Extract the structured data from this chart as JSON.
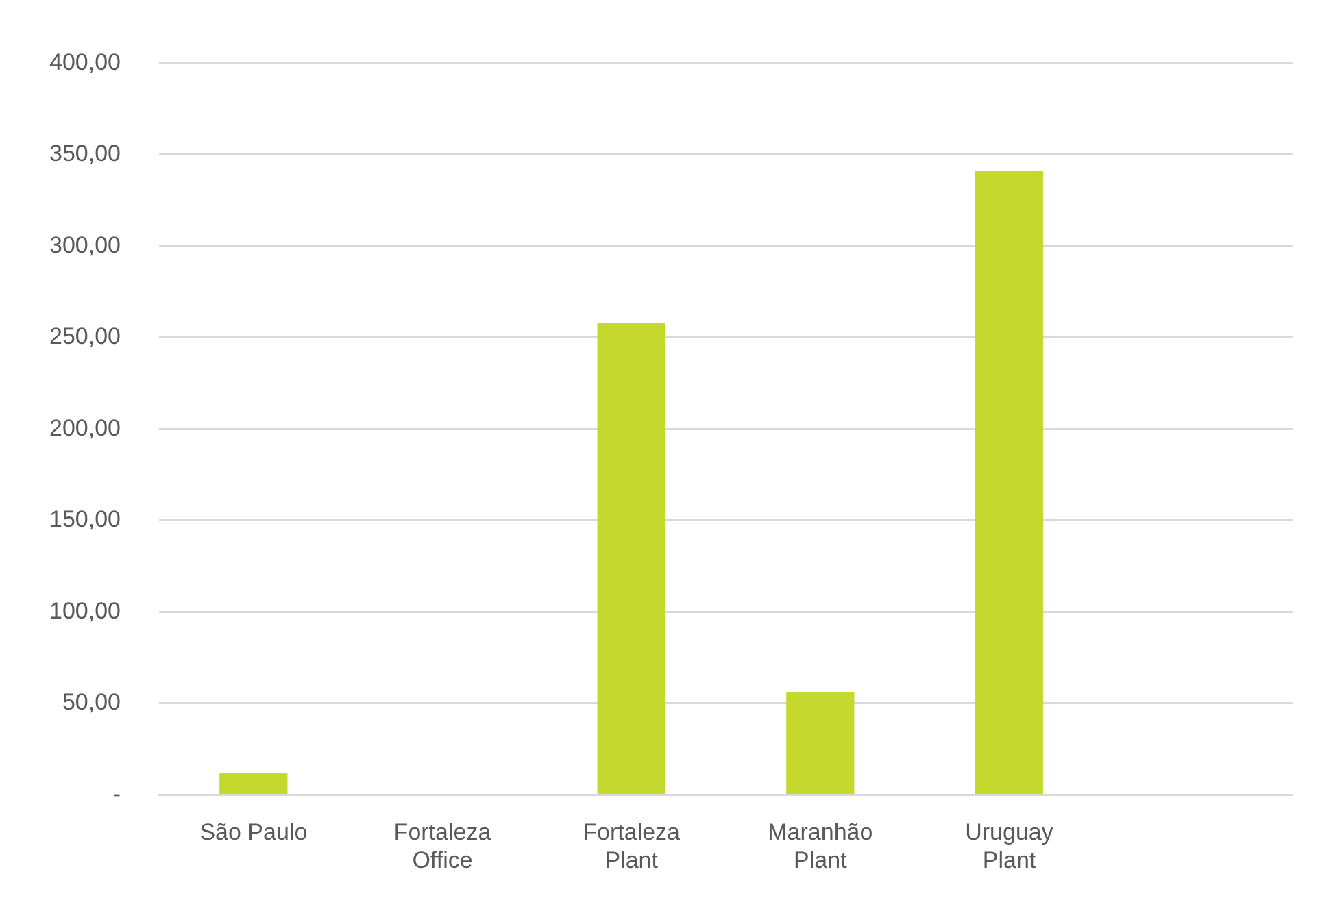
{
  "chart_data": {
    "type": "bar",
    "categories": [
      "São Paulo",
      "Fortaleza Office",
      "Fortaleza Plant",
      "Maranhão Plant",
      "Uruguay Plant",
      null
    ],
    "values": [
      12,
      0,
      258,
      56,
      341,
      null
    ],
    "color": "#c4d82e",
    "ylim": [
      0,
      400
    ],
    "yticks": [
      {
        "value": 0,
        "label": "-"
      },
      {
        "value": 50,
        "label": "50,00"
      },
      {
        "value": 100,
        "label": "100,00"
      },
      {
        "value": 150,
        "label": "150,00"
      },
      {
        "value": 200,
        "label": "200,00"
      },
      {
        "value": 250,
        "label": "250,00"
      },
      {
        "value": 300,
        "label": "300,00"
      },
      {
        "value": 350,
        "label": "350,00"
      },
      {
        "value": 400,
        "label": "400,00"
      }
    ],
    "grid": "y"
  }
}
